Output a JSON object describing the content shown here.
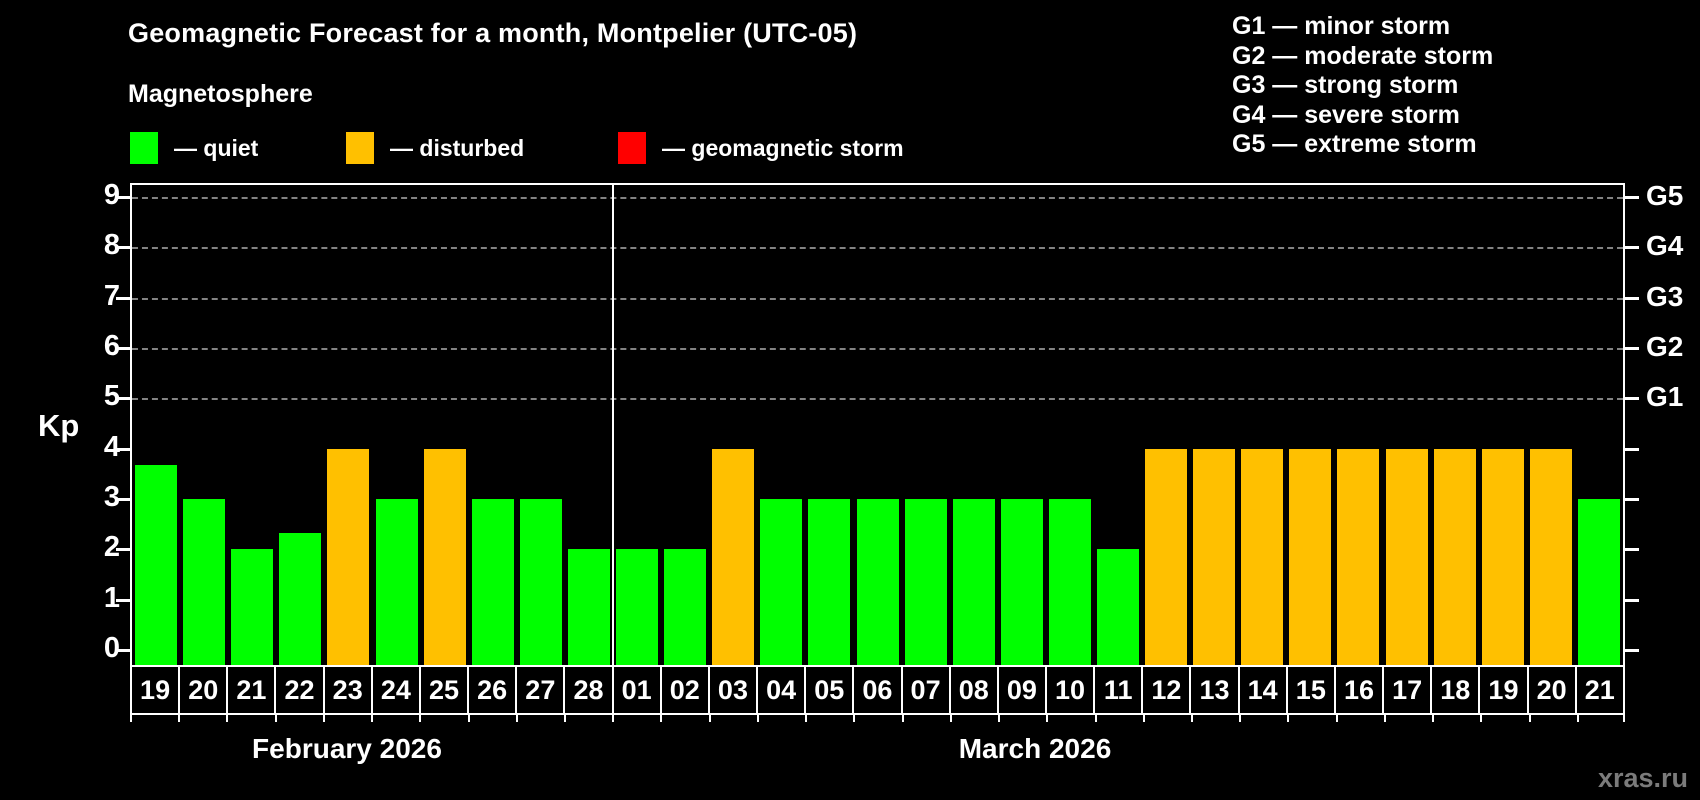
{
  "title": "Geomagnetic Forecast for a month, Montpelier (UTC-05)",
  "subtitle": "Magnetosphere",
  "watermark": "xras.ru",
  "legend": {
    "items": [
      {
        "status": "quiet",
        "color": "#00ff00",
        "label": "— quiet",
        "x": 130
      },
      {
        "status": "disturbed",
        "color": "#ffc000",
        "label": "— disturbed",
        "x": 346
      },
      {
        "status": "storm",
        "color": "#ff0000",
        "label": "— geomagnetic storm",
        "x": 618
      }
    ]
  },
  "g_legend": [
    "G1 — minor storm",
    "G2 — moderate storm",
    "G3 — strong storm",
    "G4 — severe storm",
    "G5 — extreme storm"
  ],
  "chart_data": {
    "type": "bar",
    "ylabel": "Kp",
    "ylim": [
      0,
      9
    ],
    "yticks": [
      0,
      1,
      2,
      3,
      4,
      5,
      6,
      7,
      8,
      9
    ],
    "grid_levels": [
      5,
      6,
      7,
      8,
      9
    ],
    "grid_style": "dashed",
    "right_axis_labels": [
      {
        "kp": 5,
        "label": "G1"
      },
      {
        "kp": 6,
        "label": "G2"
      },
      {
        "kp": 7,
        "label": "G3"
      },
      {
        "kp": 8,
        "label": "G4"
      },
      {
        "kp": 9,
        "label": "G5"
      }
    ],
    "status_colors": {
      "quiet": "#00ff00",
      "disturbed": "#ffc000",
      "storm": "#ff0000"
    },
    "months": [
      {
        "label": "February 2026",
        "label_center_x": 347,
        "day_count": 10
      },
      {
        "label": "March 2026",
        "label_center_x": 1035,
        "day_count": 21
      }
    ],
    "bars": [
      {
        "day": "19",
        "month": "February 2026",
        "kp": 3.67,
        "status": "quiet"
      },
      {
        "day": "20",
        "month": "February 2026",
        "kp": 3,
        "status": "quiet"
      },
      {
        "day": "21",
        "month": "February 2026",
        "kp": 2,
        "status": "quiet"
      },
      {
        "day": "22",
        "month": "February 2026",
        "kp": 2.33,
        "status": "quiet"
      },
      {
        "day": "23",
        "month": "February 2026",
        "kp": 4,
        "status": "disturbed"
      },
      {
        "day": "24",
        "month": "February 2026",
        "kp": 3,
        "status": "quiet"
      },
      {
        "day": "25",
        "month": "February 2026",
        "kp": 4,
        "status": "disturbed"
      },
      {
        "day": "26",
        "month": "February 2026",
        "kp": 3,
        "status": "quiet"
      },
      {
        "day": "27",
        "month": "February 2026",
        "kp": 3,
        "status": "quiet"
      },
      {
        "day": "28",
        "month": "February 2026",
        "kp": 2,
        "status": "quiet"
      },
      {
        "day": "01",
        "month": "March 2026",
        "kp": 2,
        "status": "quiet"
      },
      {
        "day": "02",
        "month": "March 2026",
        "kp": 2,
        "status": "quiet"
      },
      {
        "day": "03",
        "month": "March 2026",
        "kp": 4,
        "status": "disturbed"
      },
      {
        "day": "04",
        "month": "March 2026",
        "kp": 3,
        "status": "quiet"
      },
      {
        "day": "05",
        "month": "March 2026",
        "kp": 3,
        "status": "quiet"
      },
      {
        "day": "06",
        "month": "March 2026",
        "kp": 3,
        "status": "quiet"
      },
      {
        "day": "07",
        "month": "March 2026",
        "kp": 3,
        "status": "quiet"
      },
      {
        "day": "08",
        "month": "March 2026",
        "kp": 3,
        "status": "quiet"
      },
      {
        "day": "09",
        "month": "March 2026",
        "kp": 3,
        "status": "quiet"
      },
      {
        "day": "10",
        "month": "March 2026",
        "kp": 3,
        "status": "quiet"
      },
      {
        "day": "11",
        "month": "March 2026",
        "kp": 2,
        "status": "quiet"
      },
      {
        "day": "12",
        "month": "March 2026",
        "kp": 4,
        "status": "disturbed"
      },
      {
        "day": "13",
        "month": "March 2026",
        "kp": 4,
        "status": "disturbed"
      },
      {
        "day": "14",
        "month": "March 2026",
        "kp": 4,
        "status": "disturbed"
      },
      {
        "day": "15",
        "month": "March 2026",
        "kp": 4,
        "status": "disturbed"
      },
      {
        "day": "16",
        "month": "March 2026",
        "kp": 4,
        "status": "disturbed"
      },
      {
        "day": "17",
        "month": "March 2026",
        "kp": 4,
        "status": "disturbed"
      },
      {
        "day": "18",
        "month": "March 2026",
        "kp": 4,
        "status": "disturbed"
      },
      {
        "day": "19",
        "month": "March 2026",
        "kp": 4,
        "status": "disturbed"
      },
      {
        "day": "20",
        "month": "March 2026",
        "kp": 4,
        "status": "disturbed"
      },
      {
        "day": "21",
        "month": "March 2026",
        "kp": 3,
        "status": "quiet"
      }
    ]
  }
}
